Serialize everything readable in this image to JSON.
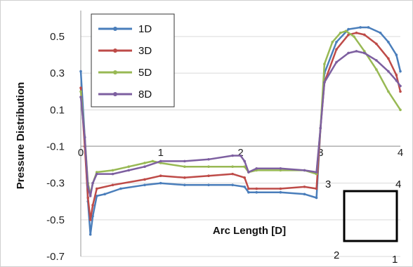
{
  "chart_data": {
    "type": "line",
    "xlabel": "Arc Length [D]",
    "ylabel": "Pressure Distribution",
    "xlim": [
      0,
      4
    ],
    "ylim": [
      -0.7,
      0.6
    ],
    "y_ticks": [
      "0.5",
      "0.3",
      "0.1",
      "-0.1",
      "-0.3",
      "-0.5",
      "-0.7"
    ],
    "x_tick_labels": [
      "0",
      "1",
      "2",
      "3",
      "4"
    ],
    "gridlines": "horizontal",
    "legend_position": "top-left",
    "annotations": [
      "3",
      "4",
      "2",
      "1"
    ],
    "series": [
      {
        "name": "1D",
        "color": "#4a7ebb",
        "points": [
          [
            0.0,
            0.31
          ],
          [
            0.05,
            -0.05
          ],
          [
            0.09,
            -0.4
          ],
          [
            0.12,
            -0.58
          ],
          [
            0.15,
            -0.48
          ],
          [
            0.2,
            -0.37
          ],
          [
            0.3,
            -0.36
          ],
          [
            0.5,
            -0.33
          ],
          [
            0.8,
            -0.31
          ],
          [
            1.0,
            -0.3
          ],
          [
            1.3,
            -0.31
          ],
          [
            1.6,
            -0.31
          ],
          [
            1.9,
            -0.31
          ],
          [
            2.05,
            -0.32
          ],
          [
            2.1,
            -0.35
          ],
          [
            2.2,
            -0.35
          ],
          [
            2.5,
            -0.35
          ],
          [
            2.8,
            -0.36
          ],
          [
            2.95,
            -0.38
          ],
          [
            3.0,
            0.0
          ],
          [
            3.05,
            0.3
          ],
          [
            3.2,
            0.47
          ],
          [
            3.35,
            0.54
          ],
          [
            3.5,
            0.55
          ],
          [
            3.6,
            0.55
          ],
          [
            3.75,
            0.52
          ],
          [
            3.85,
            0.47
          ],
          [
            3.95,
            0.4
          ],
          [
            4.0,
            0.31
          ]
        ]
      },
      {
        "name": "3D",
        "color": "#be4b48",
        "points": [
          [
            0.0,
            0.22
          ],
          [
            0.05,
            -0.1
          ],
          [
            0.09,
            -0.38
          ],
          [
            0.12,
            -0.5
          ],
          [
            0.15,
            -0.42
          ],
          [
            0.2,
            -0.33
          ],
          [
            0.4,
            -0.31
          ],
          [
            0.8,
            -0.28
          ],
          [
            1.0,
            -0.26
          ],
          [
            1.3,
            -0.27
          ],
          [
            1.6,
            -0.26
          ],
          [
            1.9,
            -0.25
          ],
          [
            2.05,
            -0.27
          ],
          [
            2.1,
            -0.33
          ],
          [
            2.2,
            -0.33
          ],
          [
            2.5,
            -0.33
          ],
          [
            2.8,
            -0.32
          ],
          [
            2.95,
            -0.33
          ],
          [
            3.0,
            0.0
          ],
          [
            3.05,
            0.25
          ],
          [
            3.2,
            0.43
          ],
          [
            3.35,
            0.51
          ],
          [
            3.45,
            0.52
          ],
          [
            3.55,
            0.51
          ],
          [
            3.7,
            0.46
          ],
          [
            3.85,
            0.38
          ],
          [
            3.95,
            0.29
          ],
          [
            4.0,
            0.2
          ]
        ]
      },
      {
        "name": "5D",
        "color": "#98b954",
        "points": [
          [
            0.0,
            0.2
          ],
          [
            0.05,
            -0.05
          ],
          [
            0.09,
            -0.3
          ],
          [
            0.12,
            -0.36
          ],
          [
            0.15,
            -0.3
          ],
          [
            0.2,
            -0.24
          ],
          [
            0.4,
            -0.23
          ],
          [
            0.6,
            -0.21
          ],
          [
            0.8,
            -0.19
          ],
          [
            0.9,
            -0.18
          ],
          [
            1.0,
            -0.19
          ],
          [
            1.3,
            -0.21
          ],
          [
            1.6,
            -0.21
          ],
          [
            1.9,
            -0.21
          ],
          [
            2.05,
            -0.21
          ],
          [
            2.1,
            -0.24
          ],
          [
            2.2,
            -0.23
          ],
          [
            2.5,
            -0.23
          ],
          [
            2.8,
            -0.23
          ],
          [
            2.95,
            -0.25
          ],
          [
            3.0,
            0.0
          ],
          [
            3.05,
            0.35
          ],
          [
            3.15,
            0.47
          ],
          [
            3.25,
            0.52
          ],
          [
            3.32,
            0.53
          ],
          [
            3.42,
            0.5
          ],
          [
            3.55,
            0.42
          ],
          [
            3.7,
            0.32
          ],
          [
            3.85,
            0.2
          ],
          [
            4.0,
            0.1
          ]
        ]
      },
      {
        "name": "8D",
        "color": "#7d5fa0",
        "points": [
          [
            0.0,
            0.17
          ],
          [
            0.05,
            -0.05
          ],
          [
            0.09,
            -0.32
          ],
          [
            0.12,
            -0.37
          ],
          [
            0.15,
            -0.3
          ],
          [
            0.2,
            -0.25
          ],
          [
            0.4,
            -0.25
          ],
          [
            0.6,
            -0.23
          ],
          [
            0.8,
            -0.21
          ],
          [
            1.0,
            -0.18
          ],
          [
            1.3,
            -0.18
          ],
          [
            1.6,
            -0.17
          ],
          [
            1.9,
            -0.15
          ],
          [
            2.0,
            -0.15
          ],
          [
            2.05,
            -0.18
          ],
          [
            2.1,
            -0.24
          ],
          [
            2.2,
            -0.22
          ],
          [
            2.5,
            -0.22
          ],
          [
            2.8,
            -0.23
          ],
          [
            2.95,
            -0.24
          ],
          [
            3.0,
            0.0
          ],
          [
            3.05,
            0.25
          ],
          [
            3.2,
            0.36
          ],
          [
            3.35,
            0.41
          ],
          [
            3.45,
            0.42
          ],
          [
            3.55,
            0.41
          ],
          [
            3.7,
            0.37
          ],
          [
            3.85,
            0.31
          ],
          [
            3.95,
            0.26
          ],
          [
            4.0,
            0.23
          ]
        ]
      }
    ]
  }
}
